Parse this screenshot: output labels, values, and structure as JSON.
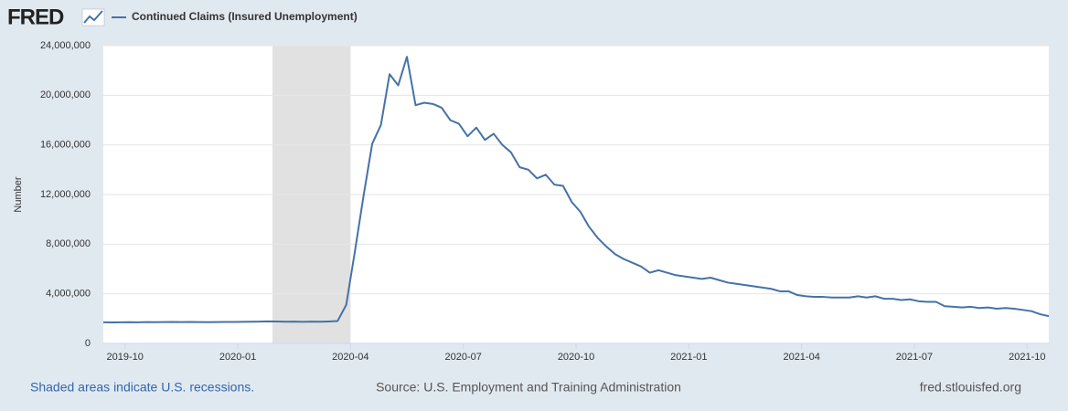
{
  "chart_data": {
    "type": "line",
    "logo": "FRED",
    "ylabel": "Number",
    "footer_left": "Shaded areas indicate U.S. recessions.",
    "source": "Source: U.S. Employment and Training Administration",
    "footer_right": "fred.stlouisfed.org",
    "recessions": [
      {
        "start": "2020-02",
        "end": "2020-04"
      }
    ],
    "recession_color": "#e1e1e1",
    "grid": true,
    "x": [
      "2019-09",
      "2019-09",
      "2019-09",
      "2019-10",
      "2019-10",
      "2019-10",
      "2019-10",
      "2019-11",
      "2019-11",
      "2019-11",
      "2019-11",
      "2019-11",
      "2019-12",
      "2019-12",
      "2019-12",
      "2019-12",
      "2020-01",
      "2020-01",
      "2020-01",
      "2020-01",
      "2020-02",
      "2020-02",
      "2020-02",
      "2020-02",
      "2020-02",
      "2020-03",
      "2020-03",
      "2020-03",
      "2020-03",
      "2020-04",
      "2020-04",
      "2020-04",
      "2020-04",
      "2020-05",
      "2020-05",
      "2020-05",
      "2020-05",
      "2020-05",
      "2020-06",
      "2020-06",
      "2020-06",
      "2020-06",
      "2020-07",
      "2020-07",
      "2020-07",
      "2020-07",
      "2020-08",
      "2020-08",
      "2020-08",
      "2020-08",
      "2020-08",
      "2020-09",
      "2020-09",
      "2020-09",
      "2020-09",
      "2020-10",
      "2020-10",
      "2020-10",
      "2020-10",
      "2020-10",
      "2020-11",
      "2020-11",
      "2020-11",
      "2020-11",
      "2020-12",
      "2020-12",
      "2020-12",
      "2020-12",
      "2021-01",
      "2021-01",
      "2021-01",
      "2021-01",
      "2021-01",
      "2021-02",
      "2021-02",
      "2021-02",
      "2021-02",
      "2021-03",
      "2021-03",
      "2021-03",
      "2021-03",
      "2021-04",
      "2021-04",
      "2021-04",
      "2021-04",
      "2021-05",
      "2021-05",
      "2021-05",
      "2021-05",
      "2021-05",
      "2021-06",
      "2021-06",
      "2021-06",
      "2021-06",
      "2021-07",
      "2021-07",
      "2021-07",
      "2021-07",
      "2021-07",
      "2021-08",
      "2021-08",
      "2021-08",
      "2021-08",
      "2021-09",
      "2021-09",
      "2021-09",
      "2021-09",
      "2021-10",
      "2021-10",
      "2021-10"
    ],
    "series": [
      {
        "name": "Continued Claims (Insured Unemployment)",
        "color": "#4572a7",
        "values": [
          1700000,
          1690000,
          1700000,
          1710000,
          1700000,
          1720000,
          1710000,
          1720000,
          1730000,
          1720000,
          1730000,
          1720000,
          1710000,
          1720000,
          1730000,
          1730000,
          1740000,
          1750000,
          1760000,
          1780000,
          1770000,
          1750000,
          1760000,
          1740000,
          1760000,
          1750000,
          1770000,
          1800000,
          3100000,
          7400000,
          11900000,
          16100000,
          17600000,
          21700000,
          20800000,
          23100000,
          19200000,
          19400000,
          19300000,
          19000000,
          18000000,
          17700000,
          16700000,
          17400000,
          16400000,
          16900000,
          16000000,
          15400000,
          14200000,
          14000000,
          13300000,
          13600000,
          12800000,
          12700000,
          11400000,
          10600000,
          9400000,
          8500000,
          7800000,
          7200000,
          6800000,
          6500000,
          6200000,
          5700000,
          5900000,
          5700000,
          5500000,
          5400000,
          5300000,
          5200000,
          5300000,
          5100000,
          4900000,
          4800000,
          4700000,
          4600000,
          4500000,
          4400000,
          4200000,
          4200000,
          3900000,
          3800000,
          3750000,
          3750000,
          3700000,
          3700000,
          3700000,
          3800000,
          3700000,
          3800000,
          3600000,
          3600000,
          3500000,
          3550000,
          3400000,
          3350000,
          3350000,
          3000000,
          2950000,
          2900000,
          2950000,
          2850000,
          2900000,
          2800000,
          2850000,
          2800000,
          2700000,
          2600000,
          2350000,
          2200000
        ]
      }
    ],
    "xticks": [
      "2019-10",
      "2020-01",
      "2020-04",
      "2020-07",
      "2020-10",
      "2021-01",
      "2021-04",
      "2021-07",
      "2021-10"
    ],
    "ylim": [
      0,
      24000000
    ],
    "yticks": [
      0,
      {
        "value": 4000000,
        "label": "4,000,000"
      },
      {
        "value": 8000000,
        "label": "8,000,000"
      },
      {
        "value": 12000000,
        "label": "12,000,000"
      },
      {
        "value": 16000000,
        "label": "16,000,000"
      },
      {
        "value": 20000000,
        "label": "20,000,000"
      },
      {
        "value": 24000000,
        "label": "24,000,000"
      }
    ]
  }
}
